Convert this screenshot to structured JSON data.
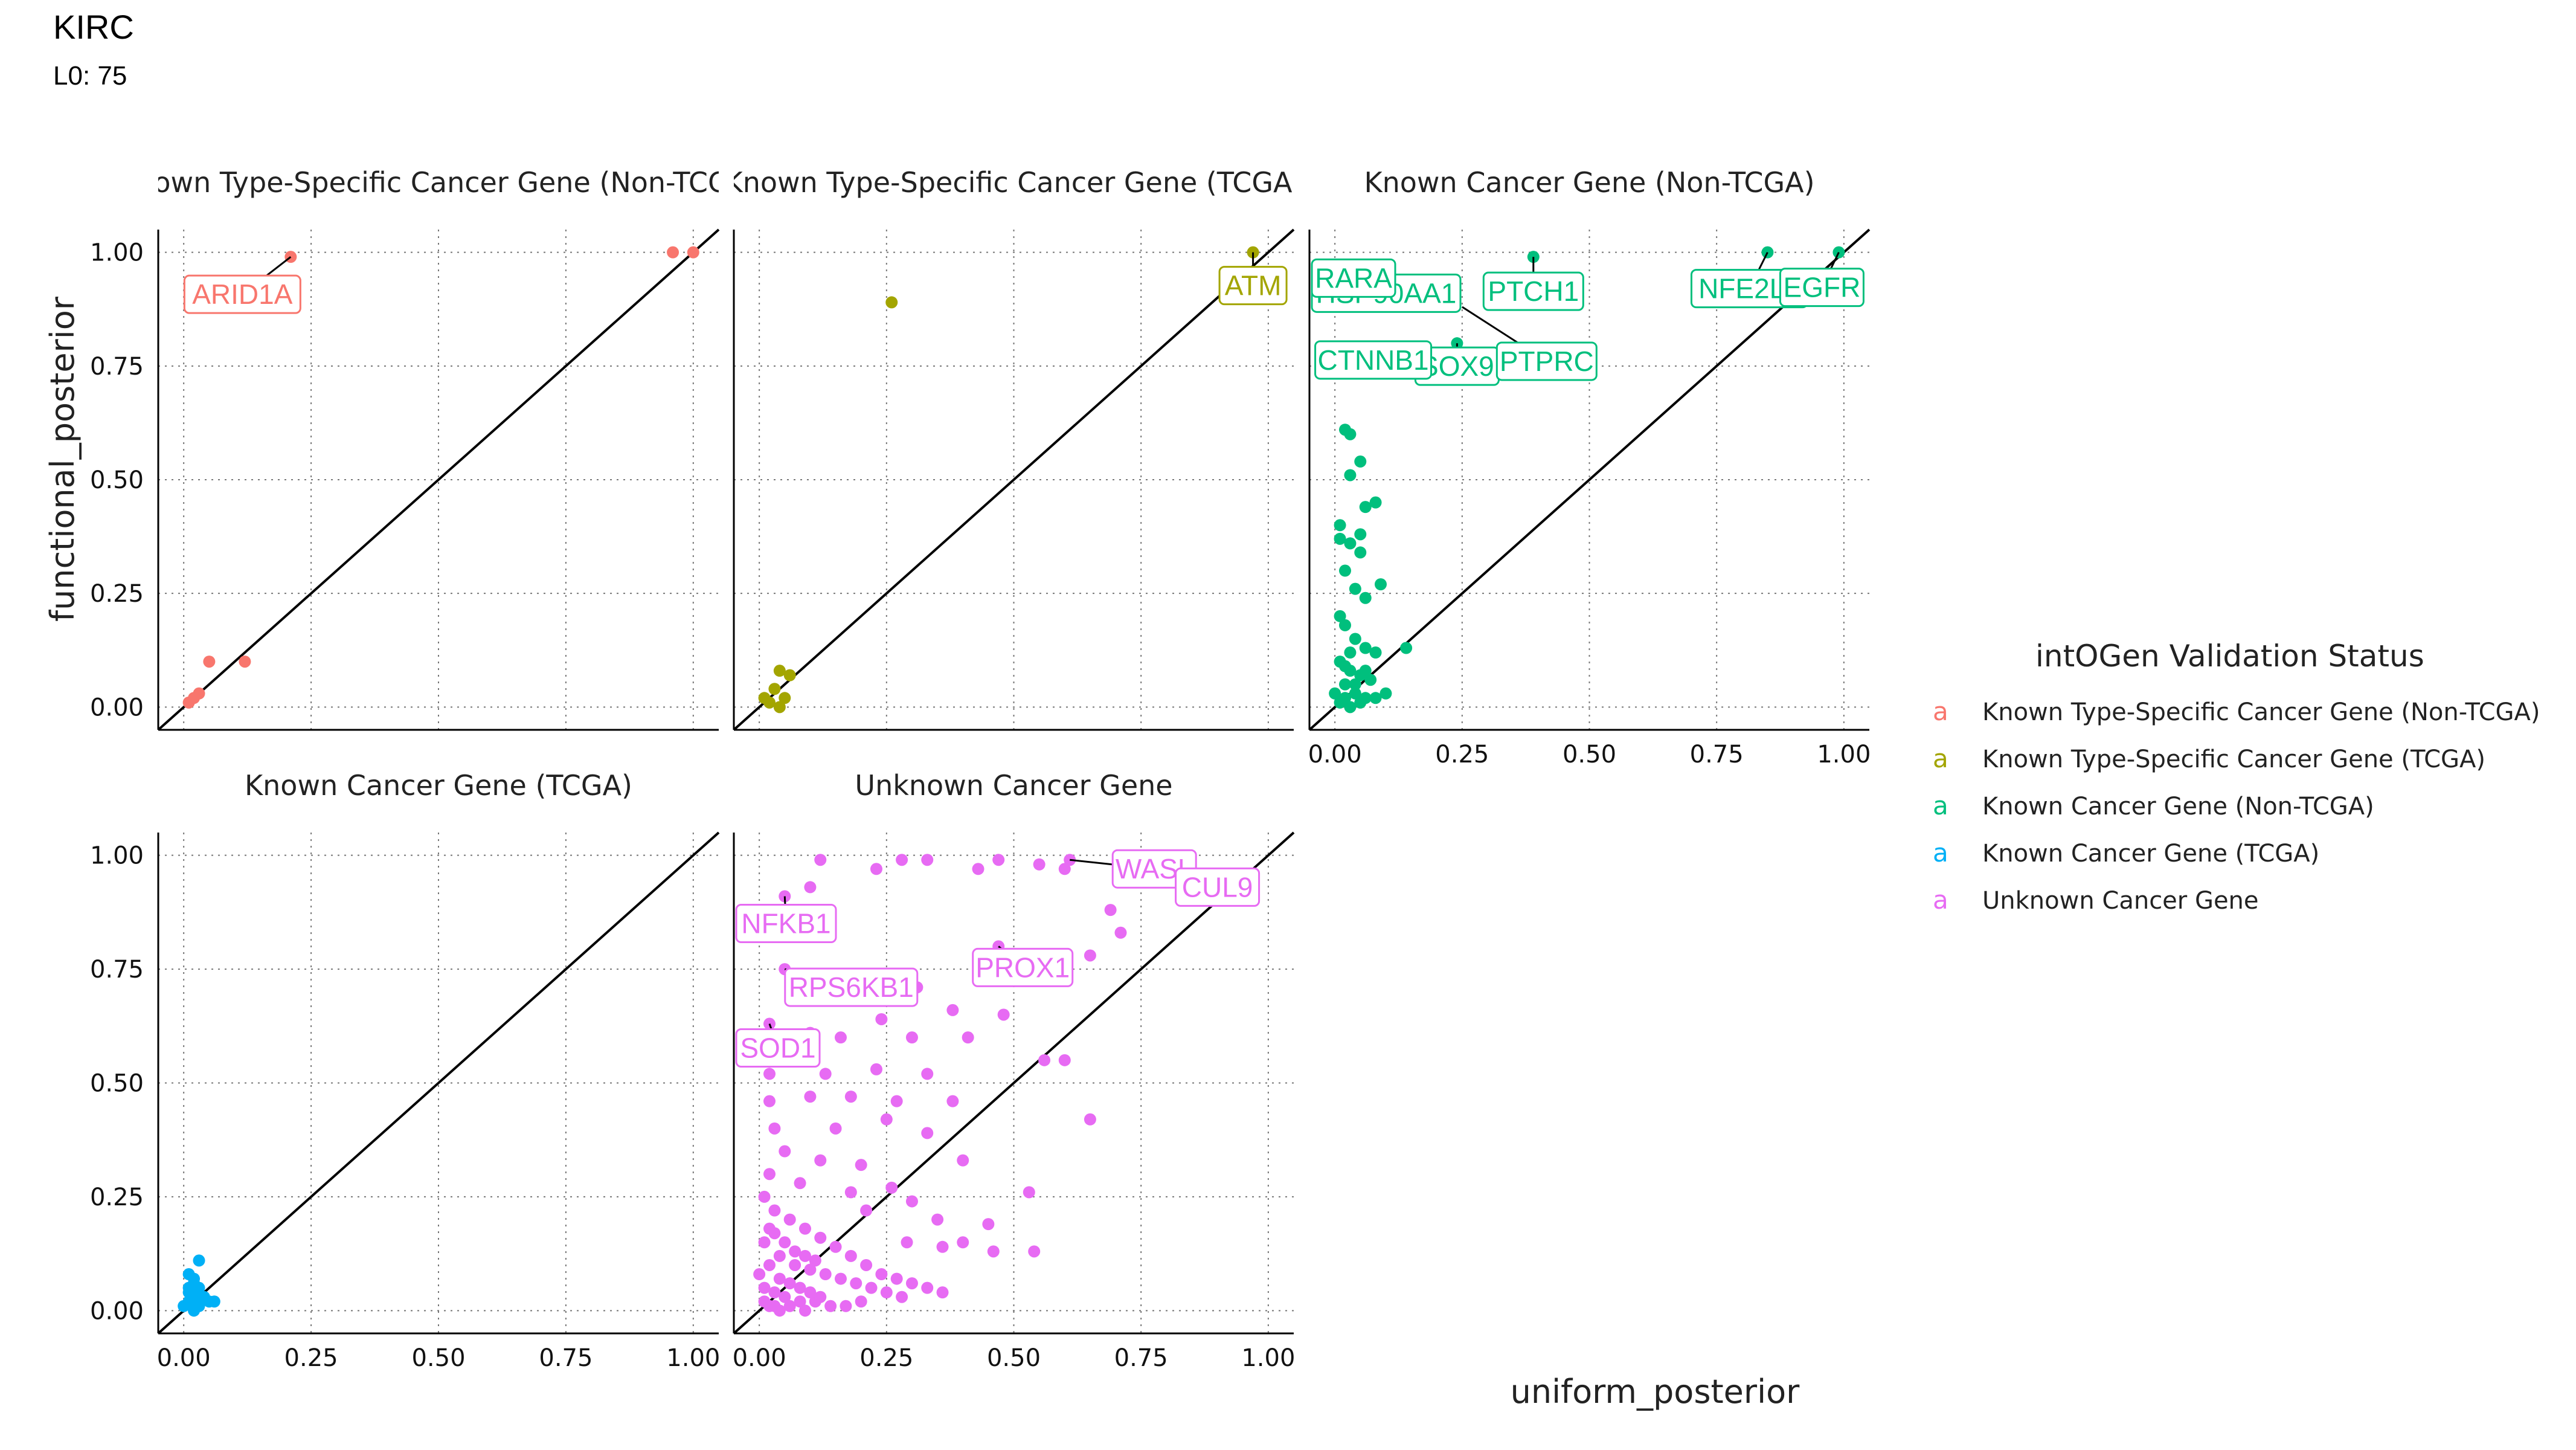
{
  "header": {
    "title": "KIRC",
    "subtitle": "L0: 75"
  },
  "axes": {
    "xlabel": "uniform_posterior",
    "ylabel": "functional_posterior"
  },
  "legend": {
    "title": "intOGen Validation Status",
    "key_glyph": "a",
    "items": [
      {
        "label": "Known Type-Specific Cancer Gene (Non-TCGA)",
        "color": "#F8766D"
      },
      {
        "label": "Known Type-Specific Cancer Gene (TCGA)",
        "color": "#A3A500"
      },
      {
        "label": "Known Cancer Gene (Non-TCGA)",
        "color": "#00BF7D"
      },
      {
        "label": "Known Cancer Gene (TCGA)",
        "color": "#00B0F6"
      },
      {
        "label": "Unknown Cancer Gene",
        "color": "#E76BF3"
      }
    ]
  },
  "chart_data": {
    "type": "scatter",
    "xlim": [
      -0.05,
      1.05
    ],
    "ylim": [
      -0.05,
      1.05
    ],
    "ticks": [
      0.0,
      0.25,
      0.5,
      0.75,
      1.0
    ],
    "tick_labels": [
      "0.00",
      "0.25",
      "0.50",
      "0.75",
      "1.00"
    ],
    "reference_line": "y = x",
    "grid": "dotted",
    "panels": [
      {
        "strip": "Known Type-Specific Cancer Gene (Non-TCGA)",
        "color": "#F8766D",
        "points": [
          [
            0.21,
            0.99
          ],
          [
            0.96,
            1.0
          ],
          [
            1.0,
            1.0
          ],
          [
            0.05,
            0.1
          ],
          [
            0.12,
            0.1
          ],
          [
            0.03,
            0.03
          ],
          [
            0.01,
            0.01
          ],
          [
            0.02,
            0.02
          ]
        ],
        "labels": [
          {
            "text": "ARID1A",
            "x": 0.21,
            "y": 0.99
          }
        ]
      },
      {
        "strip": "Known Type-Specific Cancer Gene (TCGA)",
        "color": "#A3A500",
        "points": [
          [
            0.26,
            0.89
          ],
          [
            0.97,
            1.0
          ],
          [
            0.04,
            0.08
          ],
          [
            0.06,
            0.07
          ],
          [
            0.03,
            0.04
          ],
          [
            0.05,
            0.02
          ],
          [
            0.02,
            0.01
          ],
          [
            0.04,
            0.0
          ],
          [
            0.01,
            0.02
          ]
        ],
        "labels": [
          {
            "text": "ATM",
            "x": 0.97,
            "y": 1.0
          }
        ]
      },
      {
        "strip": "Known Cancer Gene (Non-TCGA)",
        "color": "#00BF7D",
        "points": [
          [
            0.03,
            0.93
          ],
          [
            0.39,
            0.99
          ],
          [
            0.85,
            1.0
          ],
          [
            0.99,
            1.0
          ],
          [
            0.24,
            0.8
          ],
          [
            0.01,
            0.75
          ],
          [
            0.02,
            0.61
          ],
          [
            0.03,
            0.6
          ],
          [
            0.05,
            0.54
          ],
          [
            0.03,
            0.51
          ],
          [
            0.06,
            0.44
          ],
          [
            0.08,
            0.45
          ],
          [
            0.05,
            0.38
          ],
          [
            0.01,
            0.37
          ],
          [
            0.03,
            0.36
          ],
          [
            0.05,
            0.34
          ],
          [
            0.01,
            0.4
          ],
          [
            0.02,
            0.3
          ],
          [
            0.04,
            0.26
          ],
          [
            0.09,
            0.27
          ],
          [
            0.06,
            0.24
          ],
          [
            0.01,
            0.2
          ],
          [
            0.02,
            0.18
          ],
          [
            0.04,
            0.15
          ],
          [
            0.06,
            0.13
          ],
          [
            0.03,
            0.12
          ],
          [
            0.08,
            0.12
          ],
          [
            0.14,
            0.13
          ],
          [
            0.01,
            0.1
          ],
          [
            0.03,
            0.08
          ],
          [
            0.05,
            0.07
          ],
          [
            0.07,
            0.06
          ],
          [
            0.02,
            0.05
          ],
          [
            0.04,
            0.03
          ],
          [
            0.06,
            0.02
          ],
          [
            0.01,
            0.01
          ],
          [
            0.03,
            0.0
          ],
          [
            0.05,
            0.01
          ],
          [
            0.02,
            0.02
          ],
          [
            0.08,
            0.02
          ],
          [
            0.1,
            0.03
          ],
          [
            0.04,
            0.05
          ],
          [
            0.0,
            0.03
          ],
          [
            0.06,
            0.08
          ],
          [
            0.02,
            0.09
          ]
        ],
        "labels": [
          {
            "text": "HSP90AA1",
            "x": 0.03,
            "y": 0.93
          },
          {
            "text": "PTCH1",
            "x": 0.39,
            "y": 0.99
          },
          {
            "text": "NFE2L2",
            "x": 0.85,
            "y": 1.0
          },
          {
            "text": "EGFR",
            "x": 0.99,
            "y": 1.0
          },
          {
            "text": "RARA",
            "x": 0.01,
            "y": 0.91
          },
          {
            "text": "SOX9",
            "x": 0.24,
            "y": 0.8
          },
          {
            "text": "PTPRC",
            "x": 0.25,
            "y": 0.88
          },
          {
            "text": "CTNNB1",
            "x": 0.01,
            "y": 0.75
          }
        ]
      },
      {
        "strip": "Known Cancer Gene (TCGA)",
        "color": "#00B0F6",
        "points": [
          [
            0.03,
            0.11
          ],
          [
            0.01,
            0.08
          ],
          [
            0.02,
            0.06
          ],
          [
            0.03,
            0.05
          ],
          [
            0.01,
            0.04
          ],
          [
            0.02,
            0.03
          ],
          [
            0.04,
            0.03
          ],
          [
            0.05,
            0.02
          ],
          [
            0.01,
            0.02
          ],
          [
            0.03,
            0.01
          ],
          [
            0.02,
            0.0
          ],
          [
            0.0,
            0.01
          ],
          [
            0.06,
            0.02
          ],
          [
            0.01,
            0.05
          ],
          [
            0.02,
            0.07
          ]
        ],
        "labels": []
      },
      {
        "strip": "Unknown Cancer Gene",
        "color": "#E76BF3",
        "points": [
          [
            0.12,
            0.99
          ],
          [
            0.28,
            0.99
          ],
          [
            0.33,
            0.99
          ],
          [
            0.47,
            0.99
          ],
          [
            0.55,
            0.98
          ],
          [
            0.61,
            0.99
          ],
          [
            0.9,
            0.93
          ],
          [
            0.23,
            0.97
          ],
          [
            0.43,
            0.97
          ],
          [
            0.6,
            0.97
          ],
          [
            0.05,
            0.91
          ],
          [
            0.1,
            0.93
          ],
          [
            0.69,
            0.88
          ],
          [
            0.71,
            0.83
          ],
          [
            0.53,
            0.78
          ],
          [
            0.65,
            0.78
          ],
          [
            0.47,
            0.8
          ],
          [
            0.05,
            0.75
          ],
          [
            0.07,
            0.69
          ],
          [
            0.16,
            0.71
          ],
          [
            0.31,
            0.71
          ],
          [
            0.24,
            0.64
          ],
          [
            0.48,
            0.65
          ],
          [
            0.38,
            0.66
          ],
          [
            0.02,
            0.63
          ],
          [
            0.1,
            0.61
          ],
          [
            0.16,
            0.6
          ],
          [
            0.3,
            0.6
          ],
          [
            0.41,
            0.6
          ],
          [
            0.56,
            0.55
          ],
          [
            0.6,
            0.55
          ],
          [
            0.02,
            0.52
          ],
          [
            0.13,
            0.52
          ],
          [
            0.23,
            0.53
          ],
          [
            0.33,
            0.52
          ],
          [
            0.02,
            0.46
          ],
          [
            0.1,
            0.47
          ],
          [
            0.18,
            0.47
          ],
          [
            0.27,
            0.46
          ],
          [
            0.38,
            0.46
          ],
          [
            0.65,
            0.42
          ],
          [
            0.03,
            0.4
          ],
          [
            0.15,
            0.4
          ],
          [
            0.25,
            0.42
          ],
          [
            0.33,
            0.39
          ],
          [
            0.05,
            0.35
          ],
          [
            0.12,
            0.33
          ],
          [
            0.2,
            0.32
          ],
          [
            0.4,
            0.33
          ],
          [
            0.02,
            0.3
          ],
          [
            0.08,
            0.28
          ],
          [
            0.18,
            0.26
          ],
          [
            0.26,
            0.27
          ],
          [
            0.53,
            0.26
          ],
          [
            0.3,
            0.24
          ],
          [
            0.21,
            0.22
          ],
          [
            0.35,
            0.2
          ],
          [
            0.45,
            0.19
          ],
          [
            0.29,
            0.15
          ],
          [
            0.36,
            0.14
          ],
          [
            0.4,
            0.15
          ],
          [
            0.46,
            0.13
          ],
          [
            0.54,
            0.13
          ],
          [
            0.03,
            0.22
          ],
          [
            0.06,
            0.2
          ],
          [
            0.09,
            0.18
          ],
          [
            0.12,
            0.16
          ],
          [
            0.15,
            0.14
          ],
          [
            0.18,
            0.12
          ],
          [
            0.21,
            0.1
          ],
          [
            0.24,
            0.08
          ],
          [
            0.27,
            0.07
          ],
          [
            0.3,
            0.06
          ],
          [
            0.33,
            0.05
          ],
          [
            0.36,
            0.04
          ],
          [
            0.04,
            0.12
          ],
          [
            0.07,
            0.1
          ],
          [
            0.1,
            0.09
          ],
          [
            0.13,
            0.08
          ],
          [
            0.16,
            0.07
          ],
          [
            0.19,
            0.06
          ],
          [
            0.22,
            0.05
          ],
          [
            0.25,
            0.04
          ],
          [
            0.28,
            0.03
          ],
          [
            0.01,
            0.05
          ],
          [
            0.03,
            0.04
          ],
          [
            0.05,
            0.03
          ],
          [
            0.08,
            0.02
          ],
          [
            0.11,
            0.02
          ],
          [
            0.14,
            0.01
          ],
          [
            0.17,
            0.01
          ],
          [
            0.2,
            0.02
          ],
          [
            0.02,
            0.01
          ],
          [
            0.04,
            0.0
          ],
          [
            0.06,
            0.01
          ],
          [
            0.09,
            0.0
          ],
          [
            0.01,
            0.15
          ],
          [
            0.02,
            0.18
          ],
          [
            0.01,
            0.25
          ],
          [
            0.03,
            0.17
          ],
          [
            0.05,
            0.15
          ],
          [
            0.07,
            0.13
          ],
          [
            0.09,
            0.12
          ],
          [
            0.11,
            0.11
          ],
          [
            0.0,
            0.08
          ],
          [
            0.02,
            0.1
          ],
          [
            0.04,
            0.07
          ],
          [
            0.06,
            0.06
          ],
          [
            0.08,
            0.05
          ],
          [
            0.1,
            0.04
          ],
          [
            0.12,
            0.03
          ],
          [
            0.01,
            0.02
          ],
          [
            0.03,
            0.01
          ]
        ],
        "labels": [
          {
            "text": "WASL",
            "x": 0.61,
            "y": 0.99
          },
          {
            "text": "CUL9",
            "x": 0.9,
            "y": 0.93
          },
          {
            "text": "PROX1",
            "x": 0.47,
            "y": 0.8
          },
          {
            "text": "NFKB1",
            "x": 0.05,
            "y": 0.91
          },
          {
            "text": "RPS6KB1",
            "x": 0.05,
            "y": 0.75
          },
          {
            "text": "SOD1",
            "x": 0.02,
            "y": 0.63
          }
        ]
      }
    ]
  }
}
